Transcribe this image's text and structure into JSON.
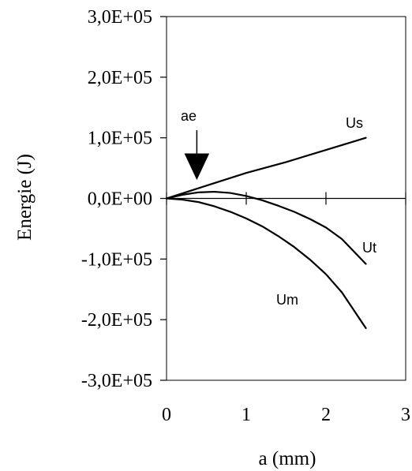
{
  "chart_data": {
    "type": "line",
    "title": "",
    "xlabel": "a (mm)",
    "ylabel": "Energie (J)",
    "xlim": [
      0,
      3
    ],
    "ylim": [
      -300000,
      300000
    ],
    "x_ticks": [
      0,
      1,
      2,
      3
    ],
    "x_tick_labels": [
      "0",
      "1",
      "2",
      "3"
    ],
    "y_ticks": [
      300000,
      200000,
      100000,
      0,
      -100000,
      -200000,
      -300000
    ],
    "y_tick_labels": [
      "3,0E+05",
      "2,0E+05",
      "1,0E+05",
      "0,0E+00",
      "-1,0E+05",
      "-2,0E+05",
      "-3,0E+05"
    ],
    "grid": false,
    "series": [
      {
        "name": "Us",
        "x": [
          0,
          0.5,
          1.0,
          1.5,
          2.0,
          2.5
        ],
        "y": [
          0,
          21000,
          42000,
          60000,
          80000,
          100000
        ]
      },
      {
        "name": "Ut",
        "x": [
          0,
          0.2,
          0.4,
          0.6,
          0.8,
          1.0,
          1.2,
          1.4,
          1.6,
          1.8,
          2.0,
          2.2,
          2.5
        ],
        "y": [
          0,
          6000,
          10000,
          11000,
          9000,
          4000,
          -3000,
          -12000,
          -22000,
          -34000,
          -48000,
          -67000,
          -108000
        ]
      },
      {
        "name": "Um",
        "x": [
          0,
          0.2,
          0.4,
          0.6,
          0.8,
          1.0,
          1.2,
          1.4,
          1.6,
          1.8,
          2.0,
          2.2,
          2.5
        ],
        "y": [
          0,
          -2000,
          -6000,
          -13000,
          -22000,
          -33000,
          -46000,
          -62000,
          -80000,
          -101000,
          -125000,
          -155000,
          -214000
        ]
      }
    ],
    "annotations": [
      {
        "text": "ae",
        "x": 0.38,
        "y": 28000
      }
    ]
  }
}
